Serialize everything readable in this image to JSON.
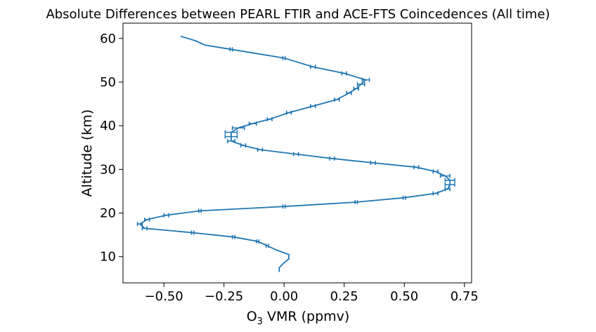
{
  "chart_data": {
    "type": "line",
    "title": "Absolute Differences between PEARL FTIR and ACE-FTS Coincedences (All time)",
    "xlabel_prefix": "O",
    "xlabel_sub": "3",
    "xlabel_suffix": " VMR (ppmv)",
    "ylabel": "Altitude (km)",
    "xlim": [
      -0.67,
      0.78
    ],
    "ylim": [
      4,
      63.5
    ],
    "xticks": [
      -0.5,
      -0.25,
      0.0,
      0.25,
      0.5,
      0.75
    ],
    "xtick_labels": [
      "−0.50",
      "−0.25",
      "0.00",
      "0.25",
      "0.50",
      "0.75"
    ],
    "yticks": [
      10,
      20,
      30,
      40,
      50,
      60
    ],
    "ytick_labels": [
      "10",
      "20",
      "30",
      "40",
      "50",
      "60"
    ],
    "grid": false,
    "series": [
      {
        "color": "#1f77b4",
        "x": [
          -0.02,
          -0.02,
          0.0,
          0.02,
          0.02,
          -0.03,
          -0.07,
          -0.11,
          -0.21,
          -0.38,
          -0.58,
          -0.6,
          -0.57,
          -0.49,
          -0.35,
          0.0,
          0.3,
          0.5,
          0.63,
          0.68,
          0.69,
          0.69,
          0.67,
          0.63,
          0.55,
          0.37,
          0.2,
          0.05,
          -0.1,
          -0.17,
          -0.22,
          -0.22,
          -0.22,
          -0.19,
          -0.13,
          -0.06,
          0.02,
          0.12,
          0.22,
          0.27,
          0.3,
          0.32,
          0.34,
          0.25,
          0.12,
          0.0,
          -0.22,
          -0.33,
          -0.37,
          -0.43
        ],
        "y": [
          6.5,
          7.5,
          8.6,
          9.5,
          10.5,
          11.5,
          12.5,
          13.5,
          14.5,
          15.5,
          16.5,
          17.5,
          18.5,
          19.5,
          20.5,
          21.5,
          22.5,
          23.5,
          24.5,
          25.5,
          26.5,
          27.5,
          28.5,
          29.5,
          30.5,
          31.5,
          32.5,
          33.5,
          34.5,
          35.5,
          36.5,
          37.5,
          38.5,
          39.5,
          40.5,
          41.5,
          43.0,
          44.5,
          46.0,
          47.5,
          48.5,
          49.5,
          50.5,
          52.0,
          53.5,
          55.5,
          57.5,
          58.5,
          59.5,
          60.5
        ],
        "err": [
          0,
          0,
          0,
          0,
          0,
          0,
          0.005,
          0.005,
          0.005,
          0.005,
          0.01,
          0.01,
          0.01,
          0.01,
          0.005,
          0.005,
          0.005,
          0.005,
          0.01,
          0.01,
          0.02,
          0.02,
          0.02,
          0.01,
          0.01,
          0.01,
          0.01,
          0.01,
          0.01,
          0.01,
          0.015,
          0.025,
          0.025,
          0.025,
          0.015,
          0.01,
          0.01,
          0.01,
          0.01,
          0.01,
          0.01,
          0.015,
          0.015,
          0.01,
          0.01,
          0.005,
          0.005,
          0,
          0,
          0
        ]
      }
    ]
  }
}
